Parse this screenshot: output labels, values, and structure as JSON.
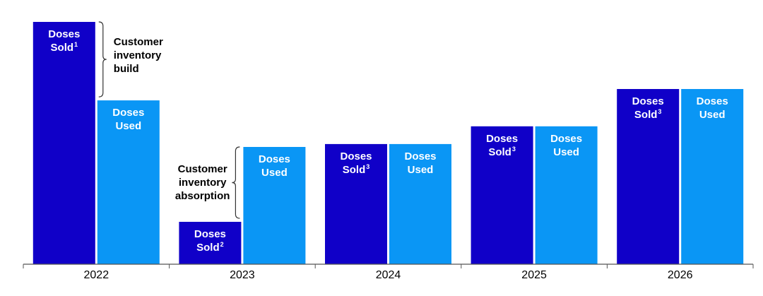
{
  "colors": {
    "sold": "#1000C8",
    "used": "#0A96F5",
    "axis": "#555555"
  },
  "chart_data": {
    "type": "bar",
    "categories": [
      "2022",
      "2023",
      "2024",
      "2025",
      "2026"
    ],
    "ylim": [
      0,
      100
    ],
    "series": [
      {
        "name": "Doses Sold",
        "values": [
          100,
          17.5,
          49.6,
          56.9,
          72.3
        ],
        "labels": [
          {
            "text": "Doses Sold",
            "note": "1"
          },
          {
            "text": "Doses Sold",
            "note": "2"
          },
          {
            "text": "Doses Sold",
            "note": "3"
          },
          {
            "text": "Doses Sold",
            "note": "3"
          },
          {
            "text": "Doses Sold",
            "note": "3"
          }
        ]
      },
      {
        "name": "Doses Used",
        "values": [
          67.6,
          48.4,
          49.6,
          56.9,
          72.3
        ],
        "labels": [
          {
            "text": "Doses Used",
            "note": ""
          },
          {
            "text": "Doses Used",
            "note": ""
          },
          {
            "text": "Doses Used",
            "note": ""
          },
          {
            "text": "Doses Used",
            "note": ""
          },
          {
            "text": "Doses Used",
            "note": ""
          }
        ]
      }
    ],
    "annotations": [
      {
        "text": "Customer inventory build",
        "category": "2022"
      },
      {
        "text": "Customer inventory absorption",
        "category": "2023"
      }
    ],
    "xlabel": "",
    "ylabel": "",
    "grid": false,
    "legend": "none"
  }
}
